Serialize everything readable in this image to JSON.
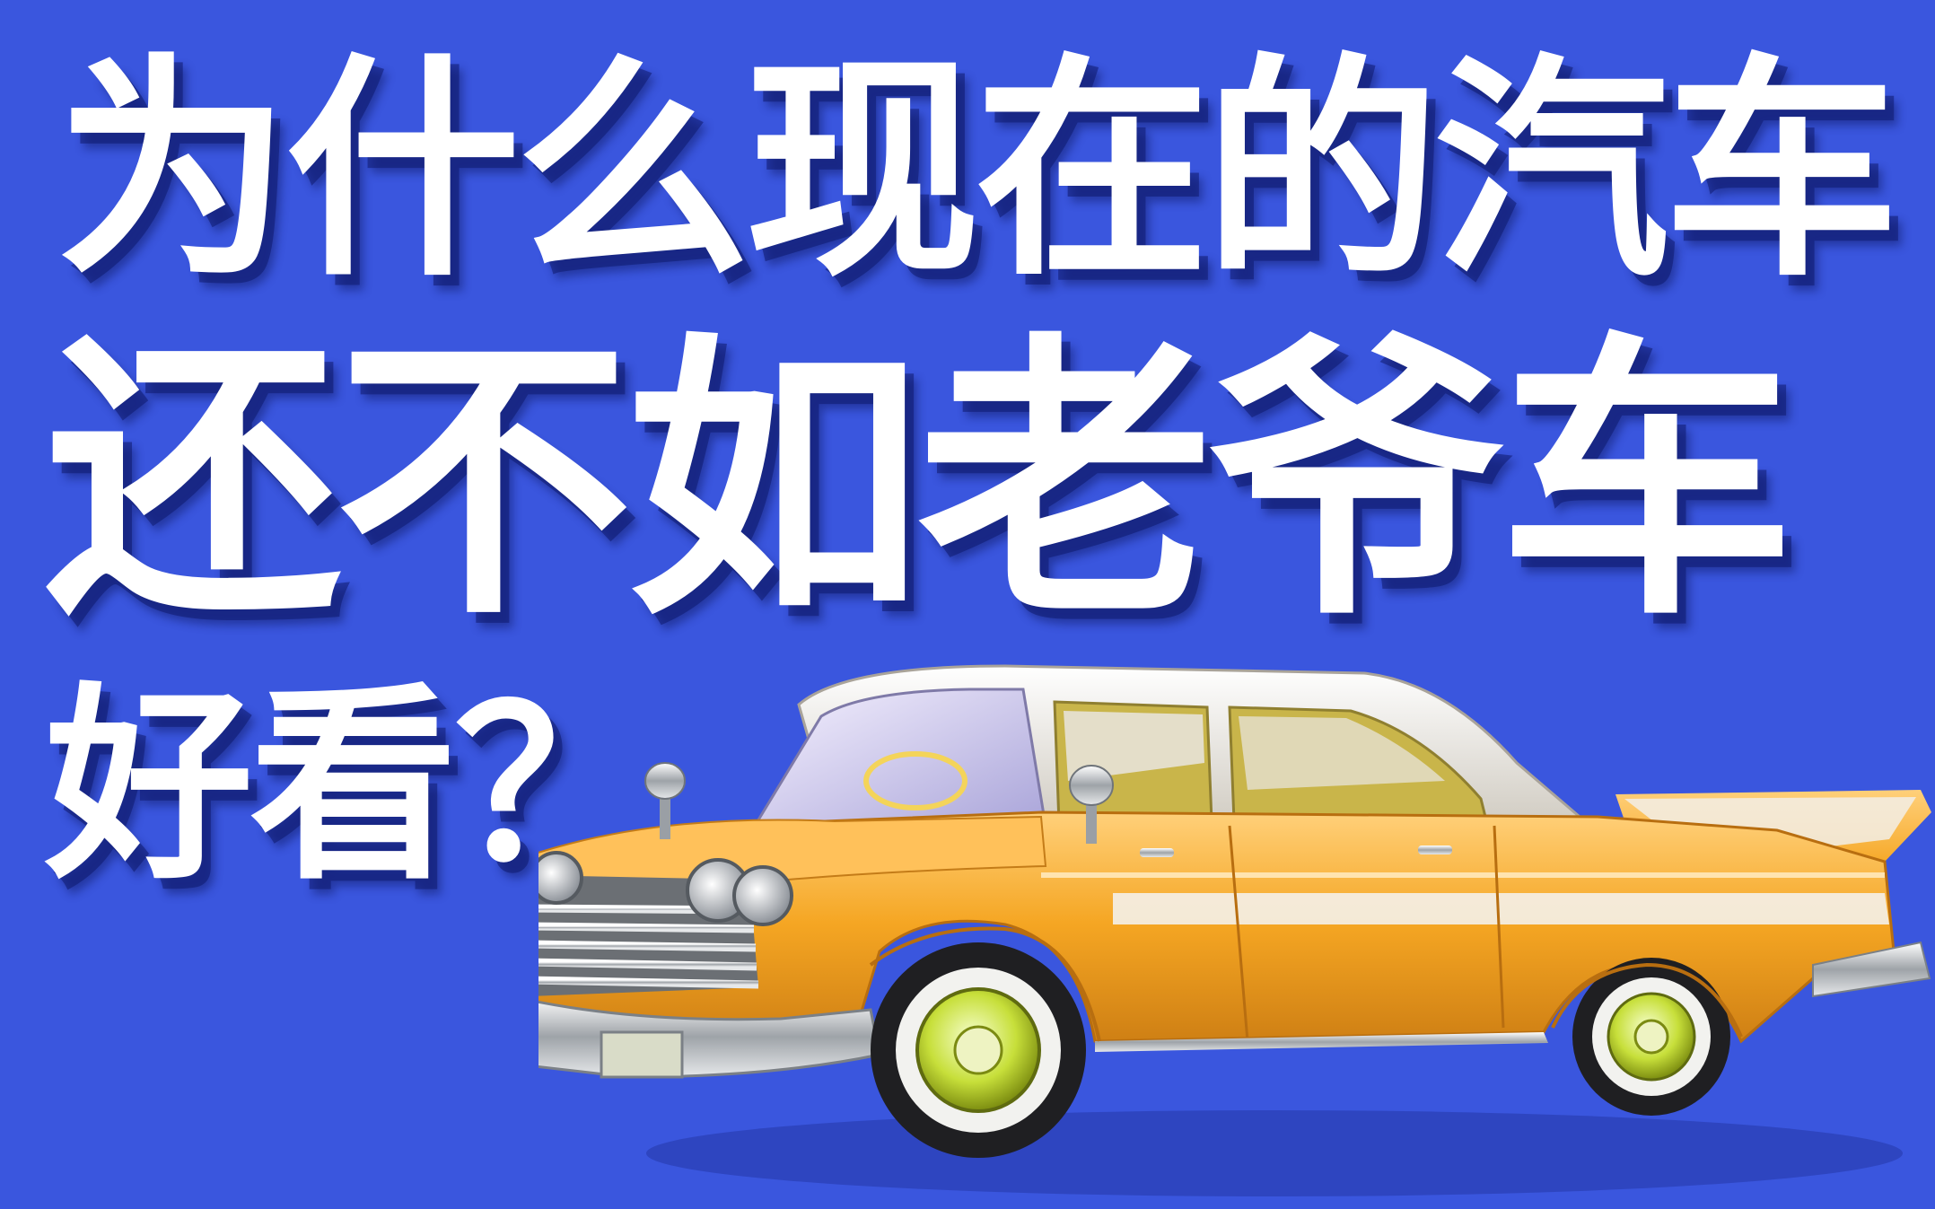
{
  "headline": {
    "line1": "为什么现在的汽车",
    "line2": "还不如老爷车",
    "line3": "好看？"
  },
  "illustration": {
    "subject": "classic-car",
    "body_color": "#f5a623",
    "roof_color": "#e9e6dd",
    "chrome_color": "#d7d9dc"
  },
  "colors": {
    "background": "#3a56de",
    "text": "#ffffff",
    "shadow": "#14207a"
  }
}
